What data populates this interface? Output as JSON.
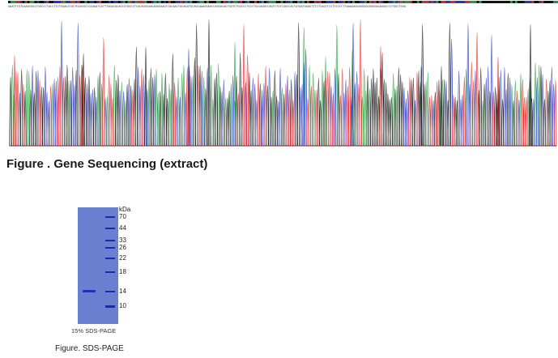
{
  "sequencing": {
    "caption": "Figure . Gene Sequencing (extract)",
    "sequence": "GAATTCGTGAAGCGGCTGGCCCTACCTTCTGGAGCCGCTGGGCGCCGCAGATCATTTAGGCACAGCGTGGCCTCACAGGCAAGAGGGAAGTCACAACTGCAGGTGCAGCAAAGGAGCCAGGACAGTGGTCTGGCCCTGCCTGCGAGGCCAGTCTGTCGGCCACTATAATGGAGTTTCTCAGTTCCTTCCCCTTAAAGAGGGGGGGGGGGGAGAGGGCCCTGGCTGGG",
    "trace_colors": {
      "A": "#1f9b3b",
      "C": "#2433c9",
      "G": "#111111",
      "T": "#e32222"
    }
  },
  "gel": {
    "unit_label": "kDa",
    "markers": [
      "70",
      "44",
      "33",
      "26",
      "22",
      "18",
      "14",
      "10"
    ],
    "label": "15% SDS-PAGE",
    "caption": "Figure. SDS-PAGE"
  }
}
